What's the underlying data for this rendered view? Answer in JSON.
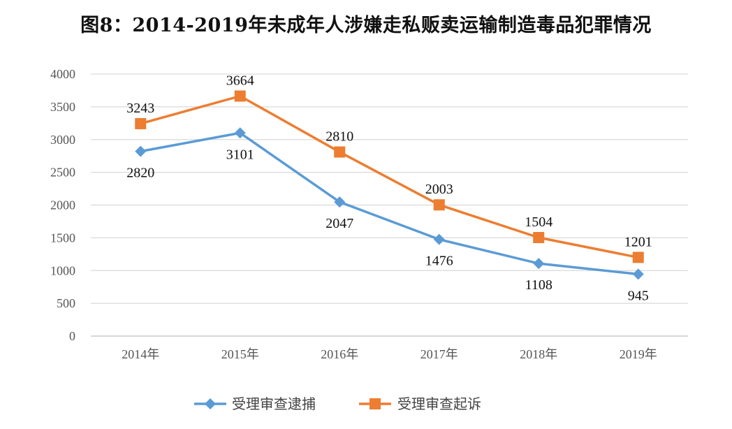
{
  "chart_data": {
    "type": "line",
    "title": "图8：2014-2019年未成年人涉嫌走私贩卖运输制造毒品犯罪情况",
    "categories": [
      "2014年",
      "2015年",
      "2016年",
      "2017年",
      "2018年",
      "2019年"
    ],
    "ylim": [
      0,
      4000
    ],
    "yticks": [
      0,
      500,
      1000,
      1500,
      2000,
      2500,
      3000,
      3500,
      4000
    ],
    "grid": true,
    "legend_position": "bottom",
    "series": [
      {
        "name": "受理审查逮捕",
        "color": "#5b9bd5",
        "marker": "diamond",
        "values": [
          2820,
          3101,
          2047,
          1476,
          1108,
          945
        ],
        "label_position": "below"
      },
      {
        "name": "受理审查起诉",
        "color": "#ed7d31",
        "marker": "square",
        "values": [
          3243,
          3664,
          2810,
          2003,
          1504,
          1201
        ],
        "label_position": "above"
      }
    ]
  }
}
